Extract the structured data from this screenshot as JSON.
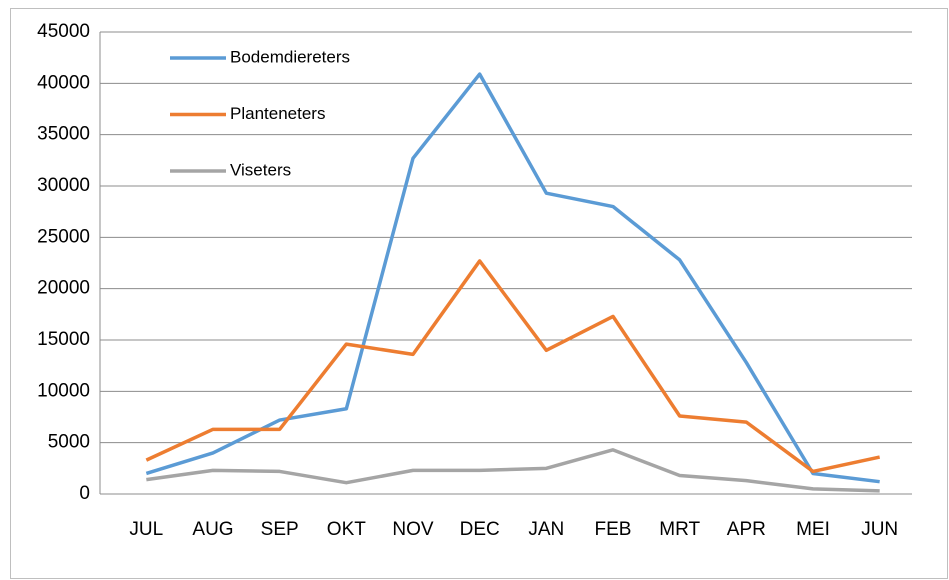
{
  "chart_data": {
    "type": "line",
    "categories": [
      "JUL",
      "AUG",
      "SEP",
      "OKT",
      "NOV",
      "DEC",
      "JAN",
      "FEB",
      "MRT",
      "APR",
      "MEI",
      "JUN"
    ],
    "series": [
      {
        "name": "Bodemdiereters",
        "color": "#5b9bd5",
        "values": [
          2000,
          4000,
          7200,
          8300,
          32700,
          40900,
          29300,
          28000,
          22800,
          12800,
          2000,
          1200
        ]
      },
      {
        "name": "Planteneters",
        "color": "#ed7d31",
        "values": [
          3300,
          6300,
          6300,
          14600,
          13600,
          22700,
          14000,
          17300,
          7600,
          7000,
          2200,
          3600
        ]
      },
      {
        "name": "Viseters",
        "color": "#a5a5a5",
        "values": [
          1400,
          2300,
          2200,
          1100,
          2300,
          2300,
          2500,
          4300,
          1800,
          1300,
          500,
          300
        ]
      }
    ],
    "ylim": [
      0,
      45000
    ],
    "yticks": [
      0,
      5000,
      10000,
      15000,
      20000,
      25000,
      30000,
      35000,
      40000,
      45000
    ],
    "grid": true,
    "legend": "upper-left"
  }
}
